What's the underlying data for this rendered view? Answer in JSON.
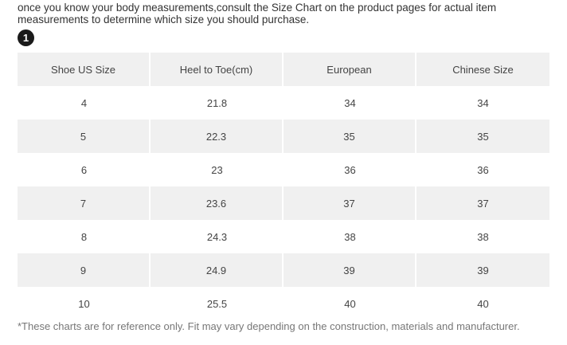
{
  "intro": {
    "line1": "once you know your body measurements,consult the Size Chart on the product pages for actual item",
    "line2": "measurements to determine which size you should purchase."
  },
  "step_badge": "1",
  "table": {
    "headers": [
      "Shoe US Size",
      "Heel to Toe(cm)",
      "European",
      "Chinese Size"
    ],
    "rows": [
      [
        "4",
        "21.8",
        "34",
        "34"
      ],
      [
        "5",
        "22.3",
        "35",
        "35"
      ],
      [
        "6",
        "23",
        "36",
        "36"
      ],
      [
        "7",
        "23.6",
        "37",
        "37"
      ],
      [
        "8",
        "24.3",
        "38",
        "38"
      ],
      [
        "9",
        "24.9",
        "39",
        "39"
      ],
      [
        "10",
        "25.5",
        "40",
        "40"
      ]
    ]
  },
  "footnote": "*These charts are for reference only. Fit may vary depending on the construction, materials and manufacturer."
}
